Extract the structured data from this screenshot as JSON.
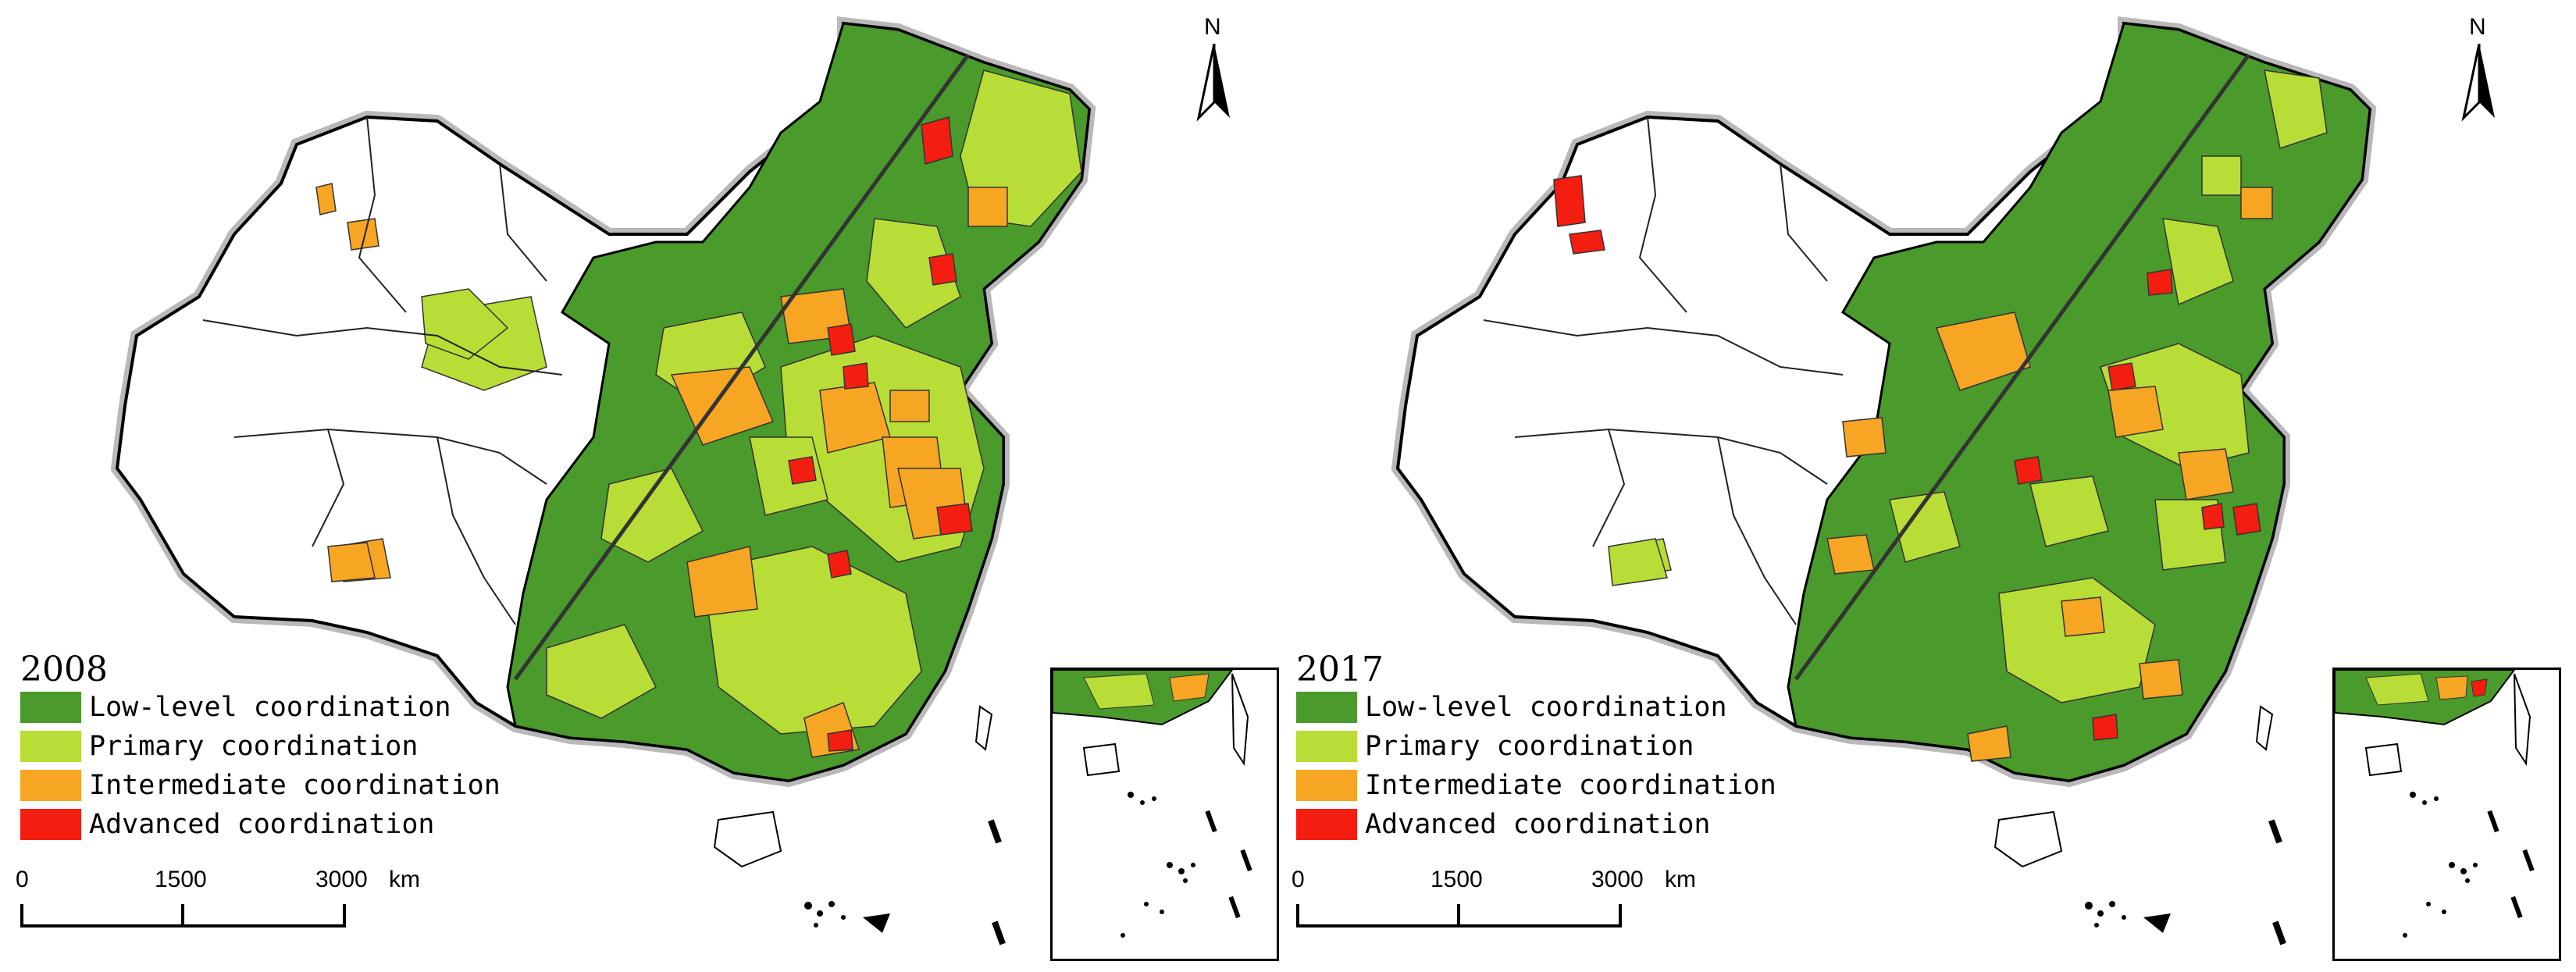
{
  "maps": [
    {
      "year": "2008"
    },
    {
      "year": "2017"
    }
  ],
  "legend": {
    "items": [
      {
        "label": "Low-level coordination",
        "color": "#4a9a2c"
      },
      {
        "label": "Primary coordination",
        "color": "#b8dd36"
      },
      {
        "label": "Intermediate coordination",
        "color": "#f6a623"
      },
      {
        "label": "Advanced coordination",
        "color": "#f41e10"
      }
    ]
  },
  "scale": {
    "ticks": [
      "0",
      "1500",
      "3000"
    ],
    "unit": "km"
  },
  "north_arrow": {
    "label": "N"
  },
  "colors": {
    "border": "#000000",
    "province_line": "#555555",
    "halo": "#b9b9b9"
  }
}
